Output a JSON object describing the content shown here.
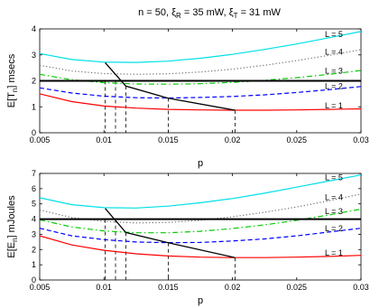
{
  "title": "n = 50, ξ_R = 35 mW, ξ_T = 31 mW",
  "title_parts": {
    "prefix": "n = 50, ξ",
    "sub1": "R",
    "mid": " = 35 mW, ξ",
    "sub2": "T",
    "suffix": " = 31 mW"
  },
  "chart_data": [
    {
      "type": "line",
      "xlabel": "p",
      "ylabel_parts": {
        "pre": "E[T",
        "sub": "n",
        "post": "] msecs"
      },
      "xlim": [
        0.005,
        0.03
      ],
      "ylim": [
        0,
        4
      ],
      "xticks": [
        "0.005",
        "0.01",
        "0.015",
        "0.02",
        "0.025",
        "0.03"
      ],
      "xtick_values": [
        0.005,
        0.01,
        0.015,
        0.02,
        0.025,
        0.03
      ],
      "yticks": [
        "0",
        "1",
        "2",
        "3",
        "4"
      ],
      "ytick_values": [
        0,
        1,
        2,
        3,
        4
      ],
      "threshold": 2.0,
      "series": [
        {
          "name": "L = 1",
          "color": "#ff0000",
          "dash": "solid",
          "x": [
            0.005,
            0.0075,
            0.01,
            0.0125,
            0.015,
            0.0175,
            0.02,
            0.0225,
            0.025,
            0.0275,
            0.03
          ],
          "y": [
            1.5,
            1.2,
            1.03,
            0.95,
            0.9,
            0.88,
            0.87,
            0.87,
            0.88,
            0.9,
            0.92
          ]
        },
        {
          "name": "L = 2",
          "color": "#0000ff",
          "dash": "dashed",
          "x": [
            0.005,
            0.0075,
            0.01,
            0.0125,
            0.015,
            0.0175,
            0.02,
            0.0225,
            0.025,
            0.0275,
            0.03
          ],
          "y": [
            1.73,
            1.53,
            1.41,
            1.35,
            1.34,
            1.36,
            1.4,
            1.46,
            1.55,
            1.66,
            1.78
          ]
        },
        {
          "name": "L = 3",
          "color": "#00cc00",
          "dash": "dashdot",
          "x": [
            0.005,
            0.0075,
            0.01,
            0.0125,
            0.015,
            0.0175,
            0.02,
            0.0225,
            0.025,
            0.0275,
            0.03
          ],
          "y": [
            2.25,
            2.04,
            1.93,
            1.88,
            1.87,
            1.89,
            1.94,
            2.02,
            2.12,
            2.25,
            2.4
          ]
        },
        {
          "name": "L = 4",
          "color": "#707070",
          "dash": "dotted",
          "x": [
            0.005,
            0.0075,
            0.01,
            0.0125,
            0.015,
            0.0175,
            0.02,
            0.0225,
            0.025,
            0.0275,
            0.03
          ],
          "y": [
            2.6,
            2.38,
            2.28,
            2.25,
            2.27,
            2.34,
            2.45,
            2.6,
            2.78,
            2.98,
            3.2
          ]
        },
        {
          "name": "L = 5",
          "color": "#00e0e8",
          "dash": "solid",
          "x": [
            0.005,
            0.0075,
            0.01,
            0.0125,
            0.015,
            0.0175,
            0.02,
            0.0225,
            0.025,
            0.0275,
            0.03
          ],
          "y": [
            3.05,
            2.82,
            2.72,
            2.71,
            2.76,
            2.87,
            3.02,
            3.21,
            3.42,
            3.66,
            3.9
          ]
        }
      ],
      "envelope": {
        "x": [
          0.0101,
          0.0117,
          0.015,
          0.0202
        ],
        "y": [
          2.7,
          1.8,
          1.33,
          0.87
        ]
      },
      "drops": [
        {
          "x": 0.0101,
          "y": 2.0
        },
        {
          "x": 0.0109,
          "y": 2.0
        },
        {
          "x": 0.0117,
          "y": 1.8
        },
        {
          "x": 0.015,
          "y": 1.34
        },
        {
          "x": 0.0202,
          "y": 0.87
        }
      ]
    },
    {
      "type": "line",
      "xlabel": "p",
      "ylabel_parts": {
        "pre": "E[E",
        "sub": "n",
        "post": "] mJoules"
      },
      "xlim": [
        0.005,
        0.03
      ],
      "ylim": [
        0,
        7
      ],
      "xticks": [
        "0.005",
        "0.01",
        "0.015",
        "0.02",
        "0.025",
        "0.03"
      ],
      "xtick_values": [
        0.005,
        0.01,
        0.015,
        0.02,
        0.025,
        0.03
      ],
      "yticks": [
        "0",
        "1",
        "2",
        "3",
        "4",
        "5",
        "6",
        "7"
      ],
      "ytick_values": [
        0,
        1,
        2,
        3,
        4,
        5,
        6,
        7
      ],
      "threshold": 4.0,
      "series": [
        {
          "name": "L = 1",
          "color": "#ff0000",
          "dash": "solid",
          "x": [
            0.005,
            0.0075,
            0.01,
            0.0125,
            0.015,
            0.0175,
            0.02,
            0.0225,
            0.025,
            0.0275,
            0.03
          ],
          "y": [
            2.9,
            2.3,
            1.95,
            1.72,
            1.58,
            1.5,
            1.47,
            1.47,
            1.5,
            1.55,
            1.62
          ]
        },
        {
          "name": "L = 2",
          "color": "#0000ff",
          "dash": "dashed",
          "x": [
            0.005,
            0.0075,
            0.01,
            0.0125,
            0.015,
            0.0175,
            0.02,
            0.0225,
            0.025,
            0.0275,
            0.03
          ],
          "y": [
            3.4,
            2.9,
            2.65,
            2.5,
            2.45,
            2.47,
            2.56,
            2.7,
            2.9,
            3.15,
            3.4
          ]
        },
        {
          "name": "L = 3",
          "color": "#00cc00",
          "dash": "dashdot",
          "x": [
            0.005,
            0.0075,
            0.01,
            0.0125,
            0.015,
            0.0175,
            0.02,
            0.0225,
            0.025,
            0.0275,
            0.03
          ],
          "y": [
            3.95,
            3.48,
            3.22,
            3.1,
            3.1,
            3.2,
            3.38,
            3.62,
            3.92,
            4.27,
            4.65
          ]
        },
        {
          "name": "L = 4",
          "color": "#707070",
          "dash": "dotted",
          "x": [
            0.005,
            0.0075,
            0.01,
            0.0125,
            0.015,
            0.0175,
            0.02,
            0.0225,
            0.025,
            0.0275,
            0.03
          ],
          "y": [
            4.6,
            4.1,
            3.85,
            3.75,
            3.78,
            3.92,
            4.15,
            4.45,
            4.8,
            5.2,
            5.65
          ]
        },
        {
          "name": "L = 5",
          "color": "#00e0e8",
          "dash": "solid",
          "x": [
            0.005,
            0.0075,
            0.01,
            0.0125,
            0.015,
            0.0175,
            0.02,
            0.0225,
            0.025,
            0.0275,
            0.03
          ],
          "y": [
            5.4,
            4.95,
            4.75,
            4.73,
            4.85,
            5.07,
            5.35,
            5.7,
            6.1,
            6.5,
            6.9
          ]
        }
      ],
      "envelope": {
        "x": [
          0.0101,
          0.0117,
          0.015,
          0.0202
        ],
        "y": [
          4.7,
          3.12,
          2.45,
          1.47
        ]
      },
      "drops": [
        {
          "x": 0.0101,
          "y": 4.0
        },
        {
          "x": 0.0109,
          "y": 4.0
        },
        {
          "x": 0.0117,
          "y": 3.12
        },
        {
          "x": 0.015,
          "y": 2.45
        },
        {
          "x": 0.0202,
          "y": 1.47
        }
      ]
    }
  ]
}
